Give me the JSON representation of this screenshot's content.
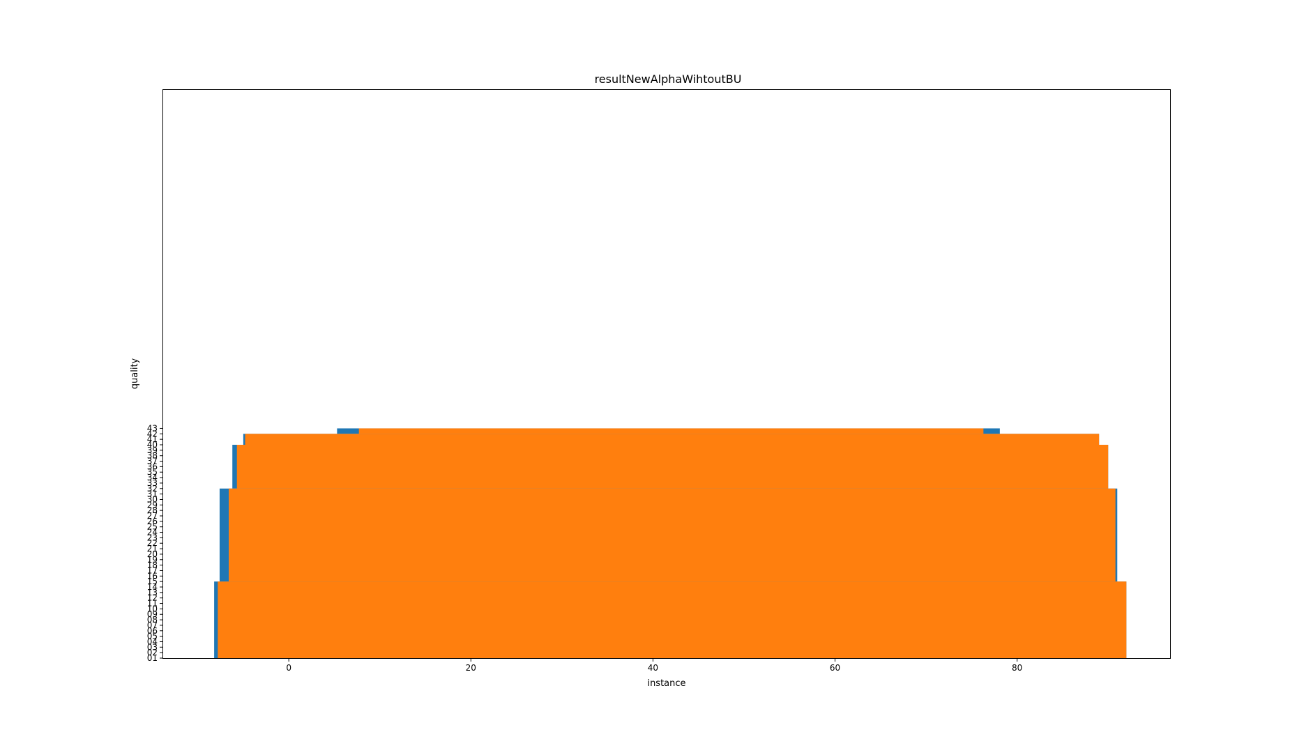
{
  "chart_data": {
    "type": "area",
    "title": "resultNewAlphaWihtoutBU",
    "xlabel": "instance",
    "ylabel": "quality",
    "xlim": [
      -13.8,
      96.8
    ],
    "ylim": [
      1,
      105
    ],
    "xticks": [
      0,
      20,
      40,
      60,
      80
    ],
    "xtick_labels": [
      "0",
      "20",
      "40",
      "60",
      "80"
    ],
    "ytick_labels": [
      "01",
      "02",
      "03",
      "04",
      "05",
      "06",
      "07",
      "08",
      "09",
      "10",
      "11",
      "12",
      "13",
      "14",
      "15",
      "16",
      "17",
      "18",
      "19",
      "20",
      "21",
      "22",
      "23",
      "24",
      "25",
      "26",
      "27",
      "28",
      "29",
      "30",
      "31",
      "32",
      "33",
      "34",
      "35",
      "36",
      "37",
      "38",
      "39",
      "40",
      "41",
      "42",
      "43"
    ],
    "grid": false,
    "series": [
      {
        "color": "#1f77b4",
        "bands": [
          {
            "y": [
              1,
              15
            ],
            "x": [
              -8.2,
              92.0
            ]
          },
          {
            "y": [
              15,
              32
            ],
            "x": [
              -7.6,
              91.0
            ]
          },
          {
            "y": [
              32,
              40
            ],
            "x": [
              -6.2,
              90.0
            ]
          },
          {
            "y": [
              40,
              42
            ],
            "x": [
              -5.0,
              89.0
            ]
          },
          {
            "y": [
              42,
              43
            ],
            "x": [
              5.3,
              78.1
            ]
          }
        ]
      },
      {
        "color": "#ff7f0e",
        "bands": [
          {
            "y": [
              1,
              15
            ],
            "x": [
              -7.8,
              92.0
            ]
          },
          {
            "y": [
              15,
              32
            ],
            "x": [
              -6.6,
              90.8
            ]
          },
          {
            "y": [
              32,
              40
            ],
            "x": [
              -5.7,
              90.0
            ]
          },
          {
            "y": [
              40,
              42
            ],
            "x": [
              -4.8,
              89.0
            ]
          },
          {
            "y": [
              42,
              43
            ],
            "x": [
              7.7,
              76.3
            ]
          }
        ]
      }
    ]
  }
}
